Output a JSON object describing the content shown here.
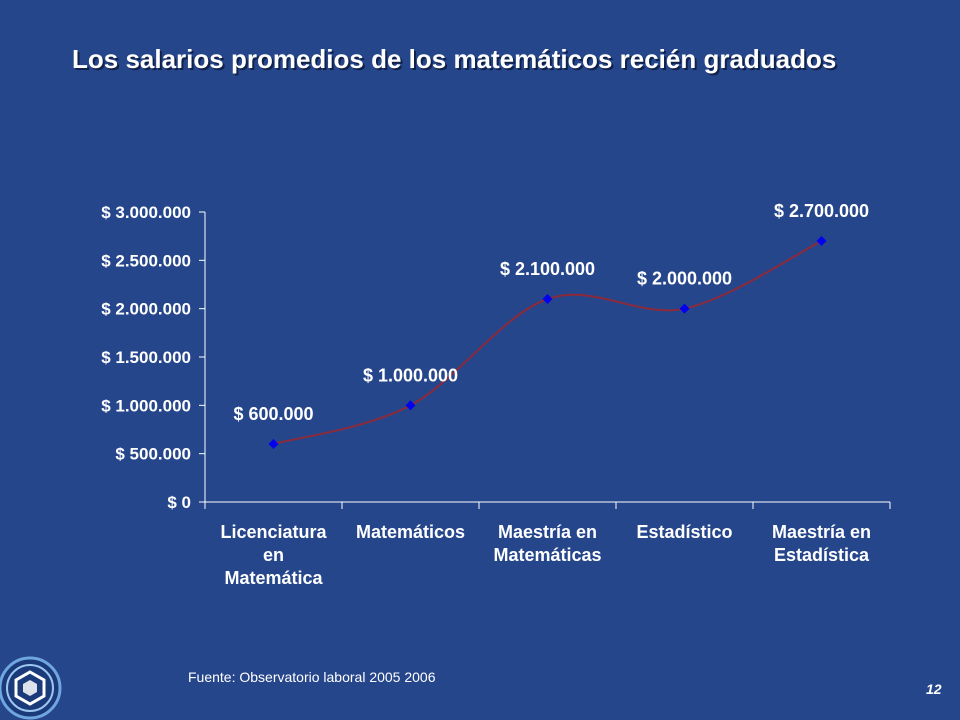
{
  "slide": {
    "title": "Los salarios promedios de los matemáticos recién graduados",
    "source": "Fuente: Observatorio laboral 2005 2006",
    "page_number": "12",
    "logo_icon": "university-logo-icon"
  },
  "colors": {
    "background": "#26468c",
    "text": "#ffffff",
    "line": "#8b2a3a",
    "marker": "#0000ee",
    "axis": "#ffffff"
  },
  "chart_data": {
    "type": "line",
    "title": "",
    "xlabel": "",
    "ylabel": "",
    "categories": [
      [
        "Licenciatura",
        "en",
        "Matemática"
      ],
      [
        "Matemáticos"
      ],
      [
        "Maestría en",
        "Matemáticas"
      ],
      [
        "Estadístico"
      ],
      [
        "Maestría en",
        "Estadística"
      ]
    ],
    "values": [
      600000,
      1000000,
      2100000,
      2000000,
      2700000
    ],
    "data_labels": [
      "$ 600.000",
      "$ 1.000.000",
      "$ 2.100.000",
      "$ 2.000.000",
      "$ 2.700.000"
    ],
    "ylim": [
      0,
      3000000
    ],
    "y_ticks": [
      0,
      500000,
      1000000,
      1500000,
      2000000,
      2500000,
      3000000
    ],
    "y_tick_labels": [
      "$ 0",
      "$ 500.000",
      "$ 1.000.000",
      "$ 1.500.000",
      "$ 2.000.000",
      "$ 2.500.000",
      "$ 3.000.000"
    ],
    "smooth": true,
    "grid": false,
    "legend": "none"
  }
}
